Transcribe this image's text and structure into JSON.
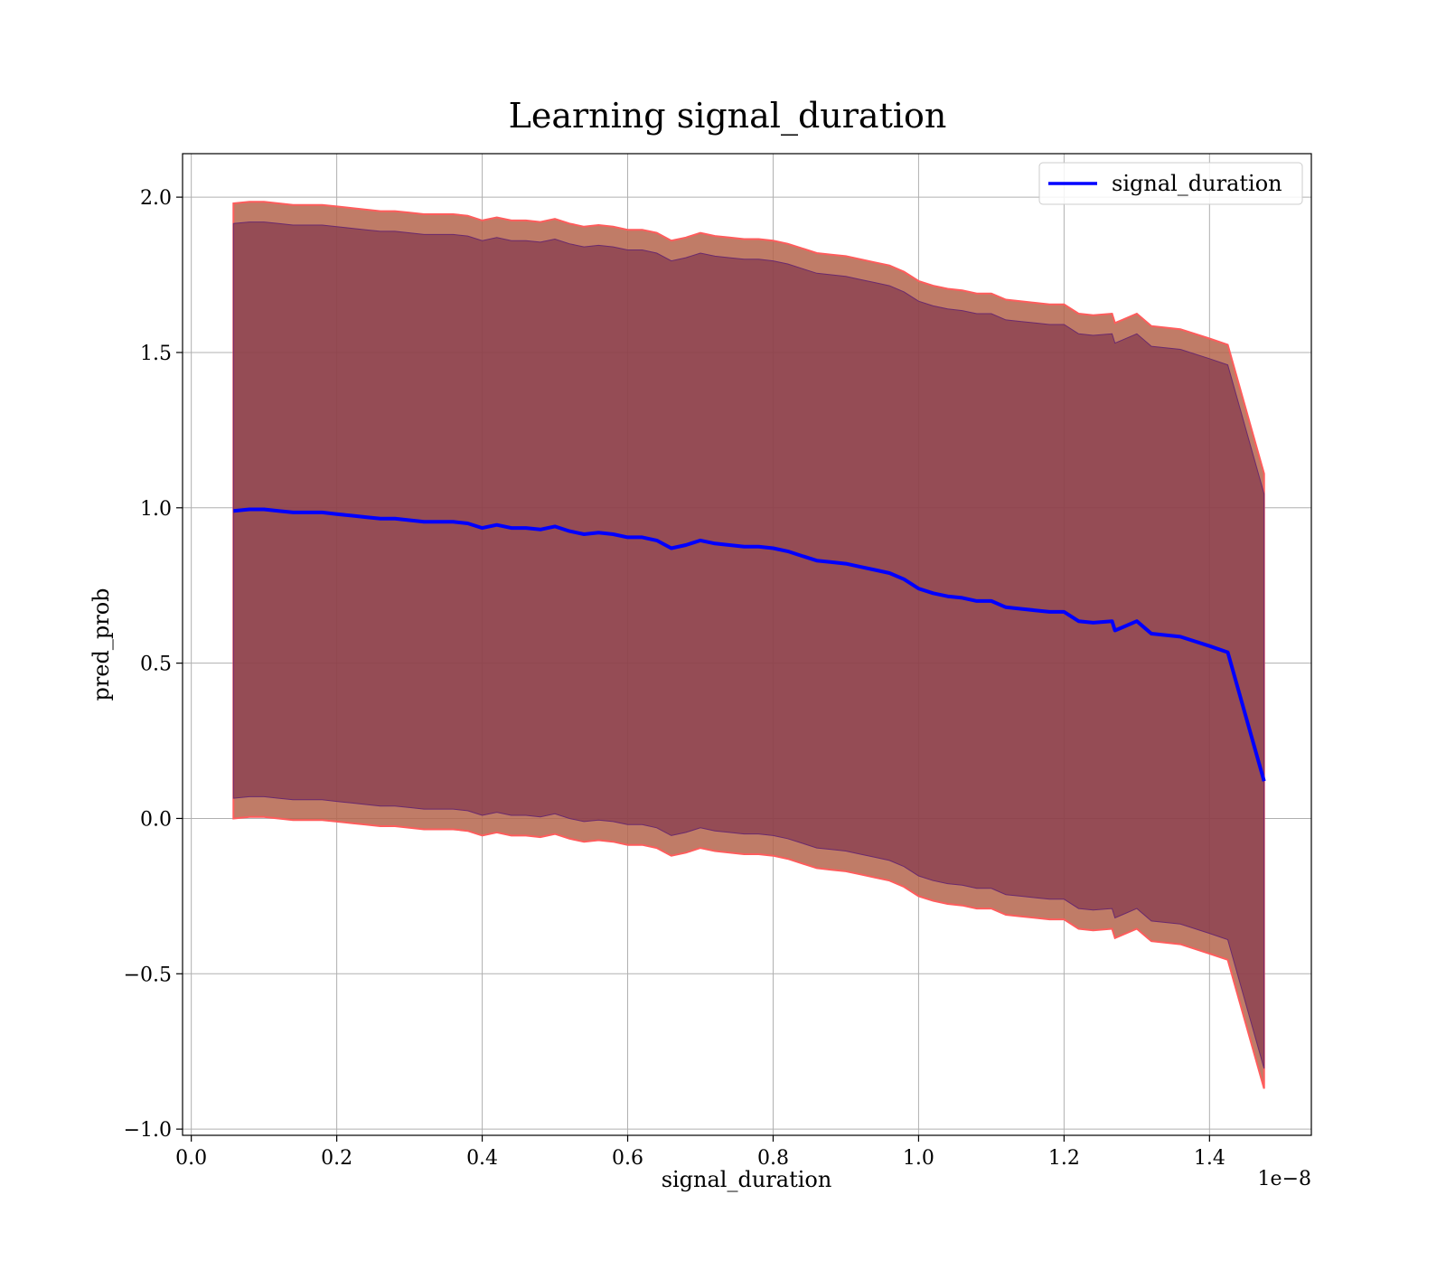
{
  "chart_data": {
    "type": "line",
    "title": "Learning signal_duration",
    "xlabel": "signal_duration",
    "ylabel": "pred_prob",
    "x_offset_label": "1e−8",
    "xlim": [
      -0.012,
      1.54
    ],
    "ylim": [
      -1.02,
      2.14
    ],
    "xticks": [
      {
        "value": 0.0,
        "label": "0.0"
      },
      {
        "value": 0.2,
        "label": "0.2"
      },
      {
        "value": 0.4,
        "label": "0.4"
      },
      {
        "value": 0.6,
        "label": "0.6"
      },
      {
        "value": 0.8,
        "label": "0.8"
      },
      {
        "value": 1.0,
        "label": "1.0"
      },
      {
        "value": 1.2,
        "label": "1.2"
      },
      {
        "value": 1.4,
        "label": "1.4"
      }
    ],
    "yticks": [
      {
        "value": -1.0,
        "label": "−1.0"
      },
      {
        "value": -0.5,
        "label": "−0.5"
      },
      {
        "value": 0.0,
        "label": "0.0"
      },
      {
        "value": 0.5,
        "label": "0.5"
      },
      {
        "value": 1.0,
        "label": "1.0"
      },
      {
        "value": 1.5,
        "label": "1.5"
      },
      {
        "value": 2.0,
        "label": "2.0"
      }
    ],
    "grid": true,
    "legend": {
      "position": "top-right",
      "entries": [
        "signal_duration"
      ]
    },
    "colors": {
      "line": "#0000ff",
      "outer_band": "#b5654c",
      "outer_band_edge": "#ff5c5c",
      "inner_band": "#7a2f4a",
      "inner_band_edge": "#6a2a6e"
    },
    "series": [
      {
        "name": "signal_duration",
        "x": [
          0.058,
          0.08,
          0.1,
          0.12,
          0.14,
          0.16,
          0.18,
          0.2,
          0.22,
          0.24,
          0.26,
          0.28,
          0.3,
          0.32,
          0.34,
          0.36,
          0.38,
          0.4,
          0.42,
          0.44,
          0.46,
          0.48,
          0.5,
          0.52,
          0.54,
          0.56,
          0.58,
          0.6,
          0.62,
          0.64,
          0.66,
          0.68,
          0.7,
          0.72,
          0.74,
          0.76,
          0.78,
          0.8,
          0.82,
          0.84,
          0.86,
          0.88,
          0.9,
          0.92,
          0.94,
          0.96,
          0.98,
          1.0,
          1.02,
          1.04,
          1.06,
          1.08,
          1.1,
          1.12,
          1.14,
          1.16,
          1.18,
          1.2,
          1.22,
          1.24,
          1.266,
          1.27,
          1.28,
          1.3,
          1.32,
          1.36,
          1.4,
          1.425,
          1.475
        ],
        "y": [
          0.99,
          0.995,
          0.995,
          0.99,
          0.985,
          0.985,
          0.985,
          0.98,
          0.975,
          0.97,
          0.965,
          0.965,
          0.96,
          0.955,
          0.955,
          0.955,
          0.95,
          0.935,
          0.945,
          0.935,
          0.935,
          0.93,
          0.94,
          0.925,
          0.915,
          0.92,
          0.915,
          0.905,
          0.905,
          0.895,
          0.87,
          0.88,
          0.895,
          0.885,
          0.88,
          0.875,
          0.875,
          0.87,
          0.86,
          0.845,
          0.83,
          0.825,
          0.82,
          0.81,
          0.8,
          0.79,
          0.77,
          0.74,
          0.725,
          0.715,
          0.71,
          0.7,
          0.7,
          0.68,
          0.675,
          0.67,
          0.665,
          0.665,
          0.635,
          0.63,
          0.635,
          0.605,
          0.615,
          0.635,
          0.595,
          0.585,
          0.555,
          0.535,
          0.12
        ]
      }
    ]
  }
}
